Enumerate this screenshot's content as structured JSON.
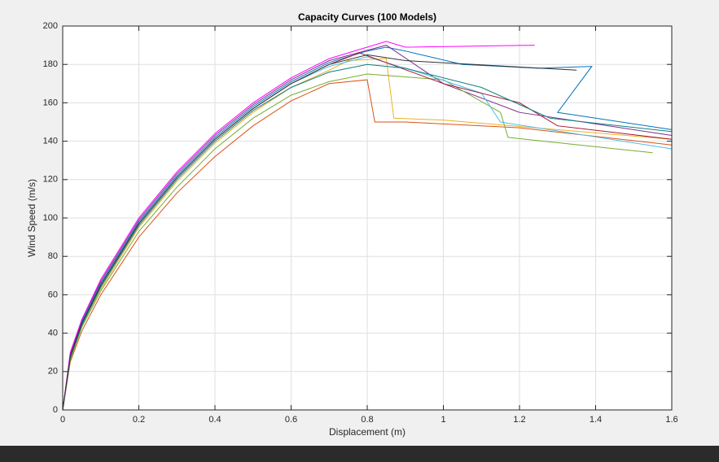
{
  "chart_data": {
    "type": "line",
    "title": "Capacity Curves (100 Models)",
    "x_label": "Displacement (m)",
    "y_label": "Wind Speed (m/s)",
    "xlim": [
      0,
      1.6
    ],
    "ylim": [
      0,
      200
    ],
    "xticks": [
      0,
      0.2,
      0.4,
      0.6,
      0.8,
      1,
      1.2,
      1.4,
      1.6
    ],
    "yticks": [
      0,
      20,
      40,
      60,
      80,
      100,
      120,
      140,
      160,
      180,
      200
    ],
    "grid": true,
    "series": [
      {
        "color": "#0072BD",
        "x": [
          0,
          0.02,
          0.05,
          0.1,
          0.2,
          0.3,
          0.4,
          0.5,
          0.6,
          0.7,
          0.8,
          0.85,
          0.9,
          1.05,
          1.25,
          1.39,
          1.3,
          1.6
        ],
        "values": [
          0,
          29,
          46,
          66,
          98,
          122,
          142,
          158,
          171,
          181,
          187,
          189,
          187,
          180,
          178,
          179,
          155,
          146
        ]
      },
      {
        "color": "#D95319",
        "x": [
          0,
          0.02,
          0.05,
          0.1,
          0.2,
          0.3,
          0.4,
          0.5,
          0.6,
          0.7,
          0.8,
          0.82,
          0.9,
          1.2,
          1.6
        ],
        "values": [
          0,
          25,
          41,
          60,
          90,
          113,
          132,
          148,
          161,
          170,
          172,
          150,
          150,
          147,
          138
        ]
      },
      {
        "color": "#EDB120",
        "x": [
          0,
          0.02,
          0.05,
          0.1,
          0.2,
          0.3,
          0.4,
          0.5,
          0.6,
          0.7,
          0.75,
          0.85,
          0.87,
          1.0,
          1.6
        ],
        "values": [
          0,
          27,
          44,
          63,
          95,
          119,
          139,
          155,
          168,
          177,
          182,
          183,
          152,
          151,
          141
        ]
      },
      {
        "color": "#7E2F8E",
        "x": [
          0,
          0.02,
          0.05,
          0.1,
          0.2,
          0.3,
          0.4,
          0.5,
          0.6,
          0.7,
          0.85,
          1.0,
          1.2,
          1.6
        ],
        "values": [
          0,
          29,
          47,
          67,
          99,
          123,
          143,
          159,
          172,
          182,
          190,
          170,
          155,
          143
        ]
      },
      {
        "color": "#77AC30",
        "x": [
          0,
          0.02,
          0.05,
          0.1,
          0.2,
          0.3,
          0.4,
          0.5,
          0.6,
          0.7,
          0.8,
          1.0,
          1.15,
          1.17,
          1.55
        ],
        "values": [
          0,
          26,
          43,
          62,
          93,
          116,
          136,
          152,
          164,
          171,
          175,
          172,
          155,
          142,
          134
        ]
      },
      {
        "color": "#4DBEEE",
        "x": [
          0,
          0.02,
          0.05,
          0.1,
          0.2,
          0.3,
          0.4,
          0.5,
          0.6,
          0.7,
          0.8,
          0.95,
          1.1,
          1.15,
          1.6
        ],
        "values": [
          0,
          28,
          45,
          65,
          97,
          121,
          141,
          157,
          170,
          179,
          184,
          175,
          165,
          150,
          136
        ]
      },
      {
        "color": "#A2142F",
        "x": [
          0,
          0.02,
          0.05,
          0.1,
          0.2,
          0.3,
          0.4,
          0.5,
          0.6,
          0.7,
          0.78,
          1.0,
          1.2,
          1.3,
          1.6
        ],
        "values": [
          0,
          28,
          45,
          65,
          97,
          121,
          141,
          157,
          170,
          180,
          186,
          170,
          160,
          148,
          141
        ]
      },
      {
        "color": "#FF00FF",
        "x": [
          0,
          0.02,
          0.05,
          0.1,
          0.2,
          0.3,
          0.4,
          0.5,
          0.6,
          0.7,
          0.85,
          0.9,
          1.24
        ],
        "values": [
          0,
          30,
          47,
          68,
          100,
          124,
          144,
          160,
          173,
          183,
          192,
          189,
          190
        ]
      },
      {
        "color": "#0F7F7F",
        "x": [
          0,
          0.02,
          0.05,
          0.1,
          0.2,
          0.3,
          0.4,
          0.5,
          0.6,
          0.7,
          0.8,
          0.9,
          1.1,
          1.28,
          1.6
        ],
        "values": [
          0,
          27,
          44,
          64,
          96,
          120,
          140,
          156,
          168,
          176,
          180,
          178,
          168,
          152,
          145
        ]
      },
      {
        "color": "#333333",
        "x": [
          0,
          0.02,
          0.05,
          0.1,
          0.2,
          0.3,
          0.4,
          0.5,
          0.6,
          0.7,
          0.8,
          0.9,
          1.35
        ],
        "values": [
          0,
          28,
          45,
          65,
          97,
          121,
          141,
          157,
          170,
          180,
          185,
          182,
          177
        ]
      }
    ]
  }
}
